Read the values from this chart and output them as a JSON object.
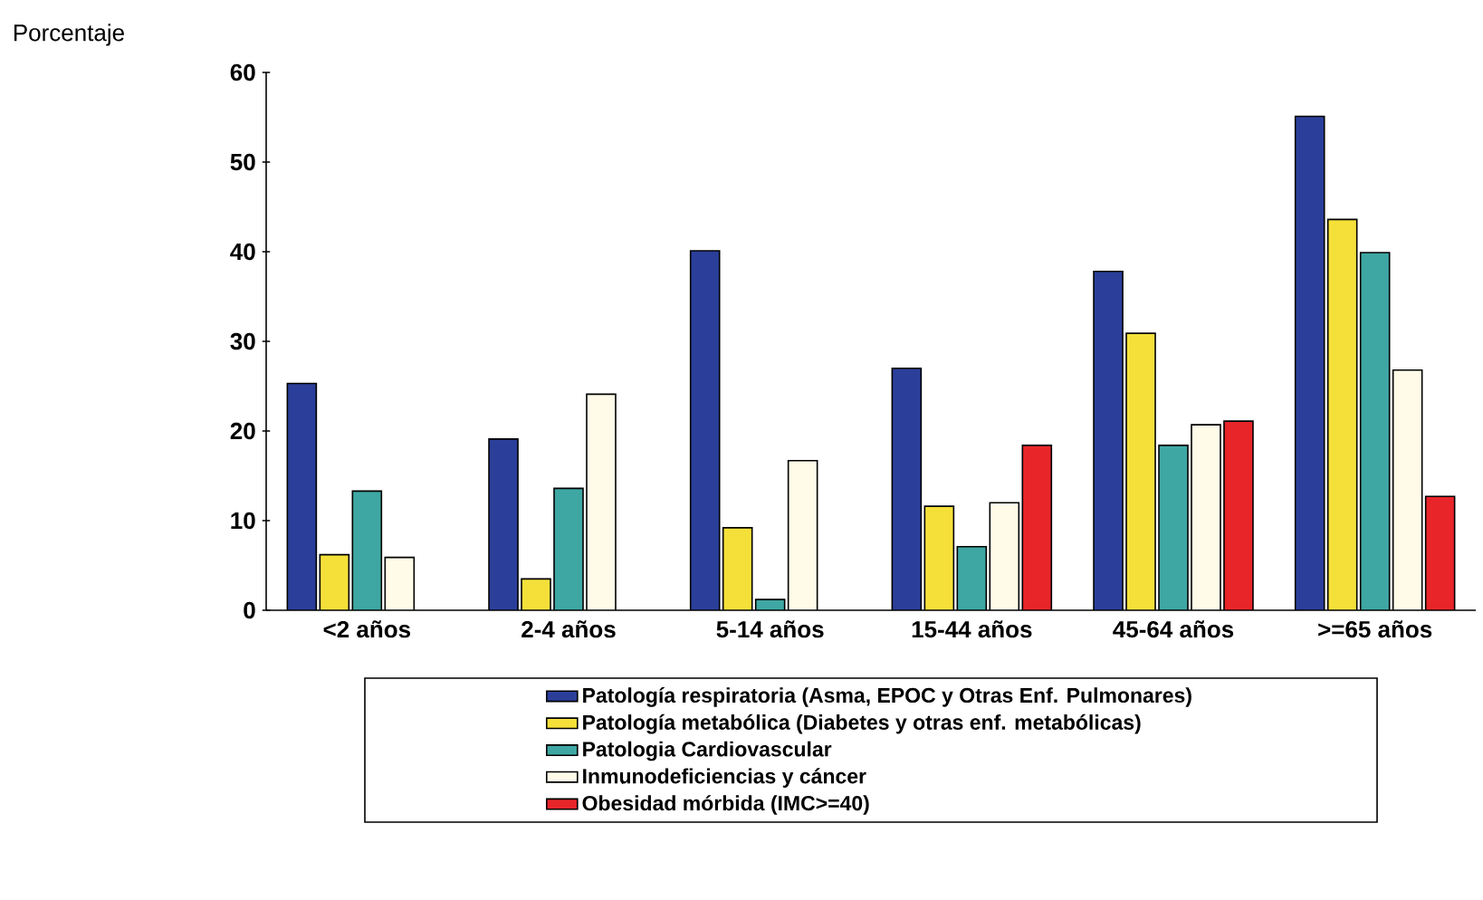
{
  "chart_data": {
    "type": "bar",
    "ylabel": "Porcentaje",
    "categories": [
      "<2 años",
      "2-4 años",
      "5-14 años",
      "15-44 años",
      "45-64 años",
      ">=65 años"
    ],
    "series": [
      {
        "name": "Patología respiratoria (Asma, EPOC y Otras Enf. Pulmonares)",
        "color": "#2b3f9a",
        "values": [
          25.3,
          19.1,
          40.1,
          27.0,
          37.8,
          55.1
        ]
      },
      {
        "name": "Patología metabólica (Diabetes y otras enf. metabólicas)",
        "color": "#f5e03a",
        "values": [
          6.2,
          3.5,
          9.2,
          11.6,
          30.9,
          43.6
        ]
      },
      {
        "name": "Patologia Cardiovascular",
        "color": "#3fa7a3",
        "values": [
          13.3,
          13.6,
          1.2,
          7.1,
          18.4,
          39.9
        ]
      },
      {
        "name": "Inmunodeficiencias y cáncer",
        "color": "#fffbe8",
        "values": [
          5.9,
          24.1,
          16.7,
          12.0,
          20.7,
          26.8
        ]
      },
      {
        "name": "Obesidad mórbida (IMC>=40)",
        "color": "#e8262a",
        "values": [
          null,
          null,
          null,
          18.4,
          21.1,
          12.7
        ]
      }
    ],
    "ylim": [
      0,
      60
    ],
    "yticks": [
      0,
      10,
      20,
      30,
      40,
      50,
      60
    ],
    "legend": "bottom"
  }
}
